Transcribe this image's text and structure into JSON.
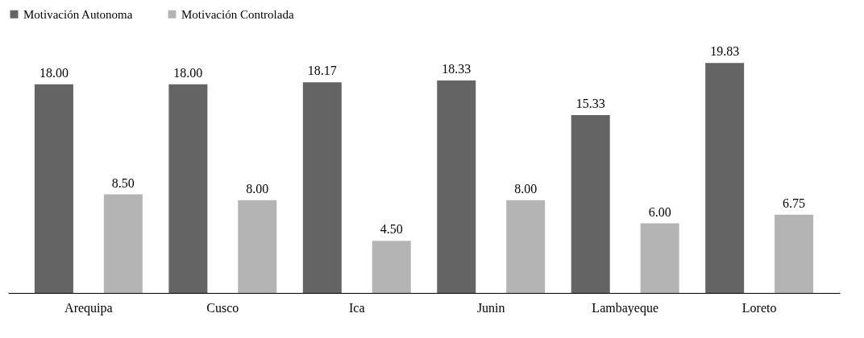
{
  "chart_data": {
    "type": "bar",
    "categories": [
      "Arequipa",
      "Cusco",
      "Ica",
      "Junin",
      "Lambayeque",
      "Loreto"
    ],
    "series": [
      {
        "name": "Motivación Autonoma",
        "color": "#646464",
        "values": [
          18.0,
          18.0,
          18.17,
          18.33,
          15.33,
          19.83
        ],
        "value_labels": [
          "18.00",
          "18.00",
          "18.17",
          "18.33",
          "15.33",
          "19.83"
        ]
      },
      {
        "name": "Motivación Controlada",
        "color": "#b4b4b4",
        "values": [
          8.5,
          8.0,
          4.5,
          8.0,
          6.0,
          6.75
        ],
        "value_labels": [
          "8.50",
          "8.00",
          "4.50",
          "8.00",
          "6.00",
          "6.75"
        ]
      }
    ],
    "legend": "top",
    "grid": false
  }
}
